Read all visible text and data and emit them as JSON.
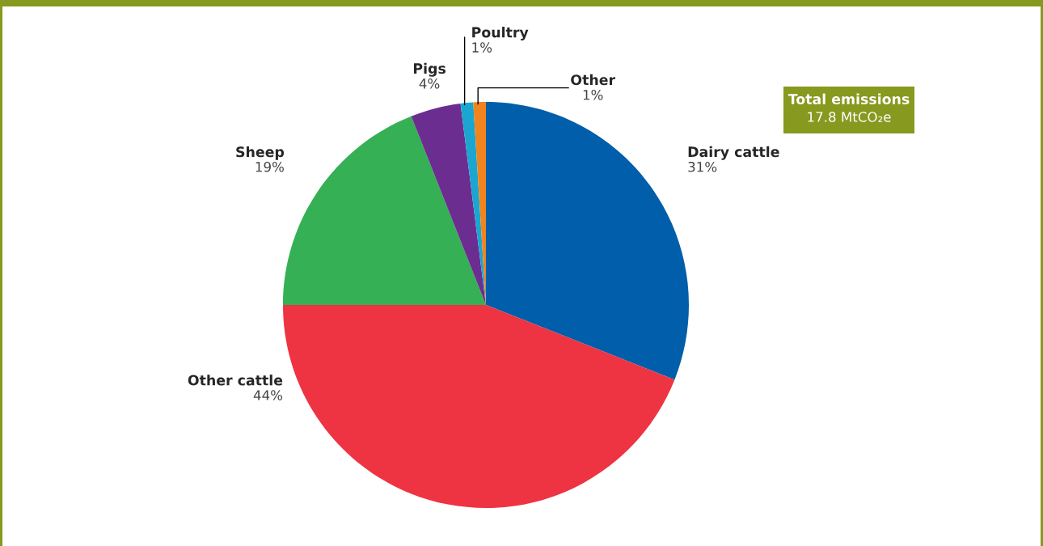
{
  "chart_data": {
    "type": "pie",
    "categories": [
      "Dairy cattle",
      "Other cattle",
      "Sheep",
      "Pigs",
      "Poultry",
      "Other"
    ],
    "values": [
      31,
      44,
      19,
      4,
      1,
      1
    ],
    "value_labels": [
      "31%",
      "44%",
      "19%",
      "4%",
      "1%",
      "1%"
    ],
    "colors": [
      "#005eaa",
      "#ee3342",
      "#35b055",
      "#6c2d91",
      "#1aa6d0",
      "#f0841e"
    ],
    "annotations": [
      "Total emissions",
      "17.8 MtCO₂e"
    ],
    "legend": false
  }
}
